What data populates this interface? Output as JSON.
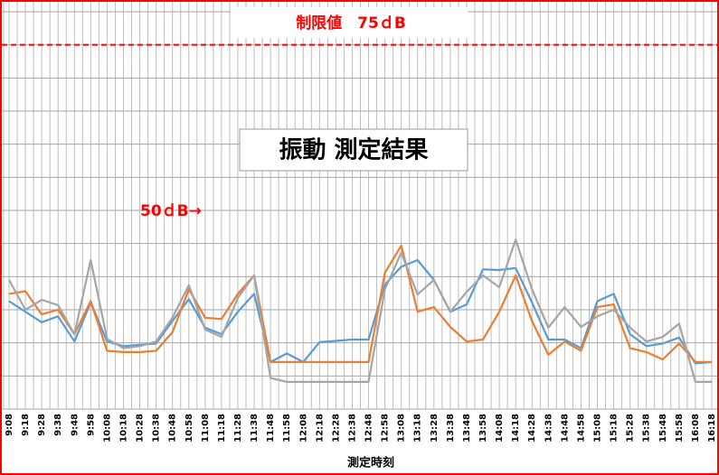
{
  "chart_data": {
    "type": "line",
    "title": "振動 測定結果",
    "limit_label": "制限値　75ｄB",
    "limit": 75,
    "annotation": "50ｄB→",
    "x_label": "測定時刻",
    "categories": [
      "9:08",
      "9:18",
      "9:28",
      "9:38",
      "9:48",
      "9:58",
      "10:08",
      "10:18",
      "10:28",
      "10:38",
      "10:48",
      "10:58",
      "11:08",
      "11:18",
      "11:28",
      "11:38",
      "11:48",
      "11:58",
      "12:08",
      "12:18",
      "12:28",
      "12:38",
      "12:48",
      "12:58",
      "13:08",
      "13:18",
      "13:28",
      "13:38",
      "13:48",
      "13:58",
      "14:08",
      "14:18",
      "14:28",
      "14:38",
      "14:48",
      "14:58",
      "15:08",
      "15:18",
      "15:28",
      "15:38",
      "15:48",
      "15:58",
      "16:08",
      "16:18"
    ],
    "series": [
      {
        "color": "#5b9bd5",
        "values": [
          36.3,
          34.7,
          33.1,
          34.0,
          30.2,
          36.1,
          30.2,
          29.5,
          29.7,
          29.9,
          33.3,
          36.6,
          32.3,
          31.3,
          34.7,
          37.4,
          27.1,
          28.4,
          27.1,
          30.1,
          30.3,
          30.5,
          30.5,
          38.8,
          41.5,
          42.5,
          39.5,
          34.7,
          35.8,
          41.1,
          41.0,
          41.3,
          36.1,
          30.5,
          30.5,
          29.2,
          36.3,
          37.4,
          31.3,
          29.5,
          29.9,
          30.8,
          26.9,
          27.1
        ]
      },
      {
        "color": "#ed7d31",
        "values": [
          37.4,
          37.8,
          34.3,
          35.0,
          31.3,
          36.3,
          28.8,
          28.6,
          28.6,
          28.8,
          31.6,
          38.1,
          33.8,
          33.6,
          37.4,
          40.2,
          27.1,
          27.1,
          27.1,
          27.1,
          27.1,
          27.1,
          27.1,
          40.6,
          44.7,
          34.7,
          35.4,
          32.4,
          30.2,
          30.5,
          34.7,
          40.2,
          33.3,
          28.2,
          30.2,
          28.8,
          35.4,
          35.8,
          29.2,
          28.6,
          27.5,
          29.9,
          27.1,
          27.1
        ]
      },
      {
        "color": "#a5a5a5",
        "values": [
          39.5,
          35.0,
          36.5,
          35.7,
          31.3,
          42.5,
          30.6,
          29.2,
          29.5,
          30.2,
          33.8,
          38.7,
          32.0,
          30.9,
          36.8,
          40.2,
          24.7,
          24.1,
          24.1,
          24.1,
          24.1,
          24.1,
          24.1,
          38.1,
          43.6,
          37.3,
          39.5,
          34.7,
          37.7,
          40.2,
          38.4,
          45.6,
          38.1,
          32.3,
          35.4,
          32.4,
          34.0,
          35.0,
          32.3,
          30.2,
          30.9,
          32.9,
          24.1,
          24.1
        ]
      }
    ],
    "ylim": [
      20,
      80
    ],
    "yticks": [
      20,
      25,
      30,
      35,
      40,
      45,
      50,
      55,
      60,
      65,
      70,
      75,
      80
    ],
    "grid": true
  }
}
